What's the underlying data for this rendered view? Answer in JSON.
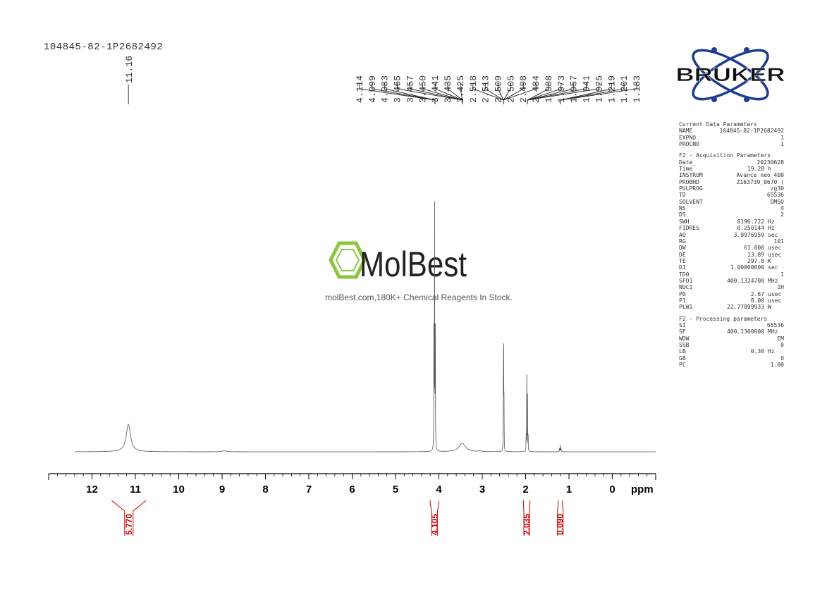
{
  "sample_id": "104845-82-1P2682492",
  "logo": {
    "brand": "BRUKER"
  },
  "watermark": {
    "brand": "MolBest",
    "tagline": "molBest.com,180K+ Chemical Reagents In Stock."
  },
  "parameters": {
    "current": {
      "title": "Current Data Parameters",
      "rows": [
        {
          "key": "NAME",
          "value": "104845-82-1P2682492",
          "unit": ""
        },
        {
          "key": "EXPNO",
          "value": "1",
          "unit": ""
        },
        {
          "key": "PROCNO",
          "value": "1",
          "unit": ""
        }
      ]
    },
    "acquisition": {
      "title": "F2 - Acquisition Parameters",
      "rows": [
        {
          "key": "Date_",
          "value": "20230628",
          "unit": ""
        },
        {
          "key": "Time",
          "value": "19.28",
          "unit": "h"
        },
        {
          "key": "INSTRUM",
          "value": "Avance neo 400",
          "unit": ""
        },
        {
          "key": "PROBHD",
          "value": "Z163739_0670 (",
          "unit": ""
        },
        {
          "key": "PULPROG",
          "value": "zg30",
          "unit": ""
        },
        {
          "key": "TD",
          "value": "65536",
          "unit": ""
        },
        {
          "key": "SOLVENT",
          "value": "DMSO",
          "unit": ""
        },
        {
          "key": "NS",
          "value": "4",
          "unit": ""
        },
        {
          "key": "DS",
          "value": "2",
          "unit": ""
        },
        {
          "key": "SWH",
          "value": "8196.722",
          "unit": "Hz"
        },
        {
          "key": "FIDRES",
          "value": "0.250144",
          "unit": "Hz"
        },
        {
          "key": "AQ",
          "value": "3.9976959",
          "unit": "sec"
        },
        {
          "key": "RG",
          "value": "101",
          "unit": ""
        },
        {
          "key": "DW",
          "value": "61.000",
          "unit": "usec"
        },
        {
          "key": "DE",
          "value": "13.89",
          "unit": "usec"
        },
        {
          "key": "TE",
          "value": "297.8",
          "unit": "K"
        },
        {
          "key": "D1",
          "value": "1.00000000",
          "unit": "sec"
        },
        {
          "key": "TD0",
          "value": "1",
          "unit": ""
        },
        {
          "key": "SFO1",
          "value": "400.1324708",
          "unit": "MHz"
        },
        {
          "key": "NUC1",
          "value": "1H",
          "unit": ""
        },
        {
          "key": "P0",
          "value": "2.67",
          "unit": "usec"
        },
        {
          "key": "P1",
          "value": "8.00",
          "unit": "usec"
        },
        {
          "key": "PLW1",
          "value": "22.77899933",
          "unit": "W"
        }
      ]
    },
    "processing": {
      "title": "F2 - Processing parameters",
      "rows": [
        {
          "key": "SI",
          "value": "65536",
          "unit": ""
        },
        {
          "key": "SF",
          "value": "400.1300000",
          "unit": "MHz"
        },
        {
          "key": "WDW",
          "value": "EM",
          "unit": ""
        },
        {
          "key": "SSB",
          "value": "0",
          "unit": ""
        },
        {
          "key": "LB",
          "value": "0.30",
          "unit": "Hz"
        },
        {
          "key": "GB",
          "value": "0",
          "unit": ""
        },
        {
          "key": "PC",
          "value": "1.00",
          "unit": ""
        }
      ]
    }
  },
  "colors": {
    "spectrum": "#555555",
    "axis": "#000000",
    "integral": "#cc0000",
    "molbest_green": "#8cc63f",
    "bruker_blue": "#1f3d8f",
    "text": "#333333"
  },
  "chart_data": {
    "type": "line",
    "xlabel": "ppm",
    "xlim": [
      13,
      -1
    ],
    "x_reversed": true,
    "x_ticks": [
      12,
      11,
      10,
      9,
      8,
      7,
      6,
      5,
      4,
      3,
      2,
      1,
      0
    ],
    "x_minor_step": 0.2,
    "ylim": [
      0,
      1
    ],
    "baseline": 0.02,
    "peaks": [
      {
        "ppm": 11.16,
        "height": 0.11,
        "width": 0.06
      },
      {
        "ppm": 8.95,
        "height": 0.004,
        "width": 0.05
      },
      {
        "ppm": 4.114,
        "height": 0.46,
        "width": 0.0035
      },
      {
        "ppm": 4.099,
        "height": 0.98,
        "width": 0.0035
      },
      {
        "ppm": 4.083,
        "height": 0.46,
        "width": 0.0035
      },
      {
        "ppm": 3.46,
        "height": 0.034,
        "width": 0.09
      },
      {
        "ppm": 3.05,
        "height": 0.005,
        "width": 0.02
      },
      {
        "ppm": 2.513,
        "height": 0.2,
        "width": 0.003
      },
      {
        "ppm": 2.509,
        "height": 0.25,
        "width": 0.003
      },
      {
        "ppm": 2.505,
        "height": 0.27,
        "width": 0.003
      },
      {
        "ppm": 2.498,
        "height": 0.17,
        "width": 0.003
      },
      {
        "ppm": 1.988,
        "height": 0.06,
        "width": 0.003
      },
      {
        "ppm": 1.973,
        "height": 0.3,
        "width": 0.003
      },
      {
        "ppm": 1.957,
        "height": 0.22,
        "width": 0.003
      },
      {
        "ppm": 1.941,
        "height": 0.06,
        "width": 0.003
      },
      {
        "ppm": 1.219,
        "height": 0.012,
        "width": 0.004
      },
      {
        "ppm": 1.201,
        "height": 0.025,
        "width": 0.004
      },
      {
        "ppm": 1.183,
        "height": 0.012,
        "width": 0.004
      }
    ],
    "peak_label_groups": [
      {
        "labels": [
          "11.16"
        ],
        "target_ppm": 11.16
      },
      {
        "labels": [
          "4.114",
          "4.099",
          "4.083",
          "3.465",
          "3.457",
          "3.450",
          "3.441",
          "3.435",
          "3.425"
        ],
        "target_ppm": [
          4.1,
          3.45
        ]
      },
      {
        "labels": [
          "2.518",
          "2.513",
          "2.509",
          "2.505",
          "2.498",
          "2.484"
        ],
        "target_ppm": 2.505
      },
      {
        "labels": [
          "1.988",
          "1.973",
          "1.957",
          "1.941",
          "1.925"
        ],
        "target_ppm": 1.96
      },
      {
        "labels": [
          "1.219",
          "1.201",
          "1.183"
        ],
        "target_ppm": 1.2
      }
    ],
    "integrals": [
      {
        "from": 11.55,
        "to": 10.75,
        "label": "5.770"
      },
      {
        "from": 4.2,
        "to": 4.0,
        "label": "4.105"
      },
      {
        "from": 2.05,
        "to": 1.9,
        "label": "2.035"
      },
      {
        "from": 1.25,
        "to": 1.15,
        "label": "0.090"
      }
    ]
  }
}
